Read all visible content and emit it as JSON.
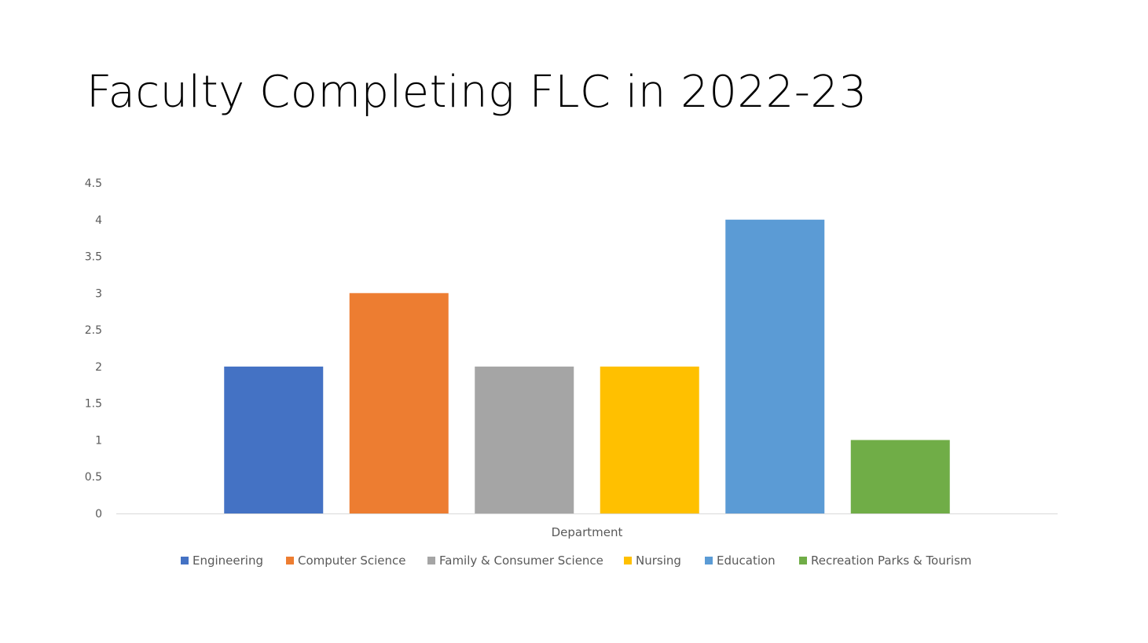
{
  "slide": {
    "title": "Faculty Completing FLC in 2022-23"
  },
  "chart_data": {
    "type": "bar",
    "categories": [
      "Department"
    ],
    "xlabel": "Department",
    "ylabel": "",
    "ylim": [
      0,
      4.5
    ],
    "yticks": [
      0,
      0.5,
      1,
      1.5,
      2,
      2.5,
      3,
      3.5,
      4,
      4.5
    ],
    "grid": false,
    "legend_position": "bottom",
    "series": [
      {
        "name": "Engineering",
        "values": [
          2
        ],
        "color": "#4472C4"
      },
      {
        "name": "Computer Science",
        "values": [
          3
        ],
        "color": "#ED7D31"
      },
      {
        "name": "Family & Consumer Science",
        "values": [
          2
        ],
        "color": "#A5A5A5"
      },
      {
        "name": "Nursing",
        "values": [
          2
        ],
        "color": "#FFC000"
      },
      {
        "name": "Education",
        "values": [
          4
        ],
        "color": "#5B9BD5"
      },
      {
        "name": "Recreation Parks & Tourism",
        "values": [
          1
        ],
        "color": "#70AD47"
      }
    ]
  }
}
